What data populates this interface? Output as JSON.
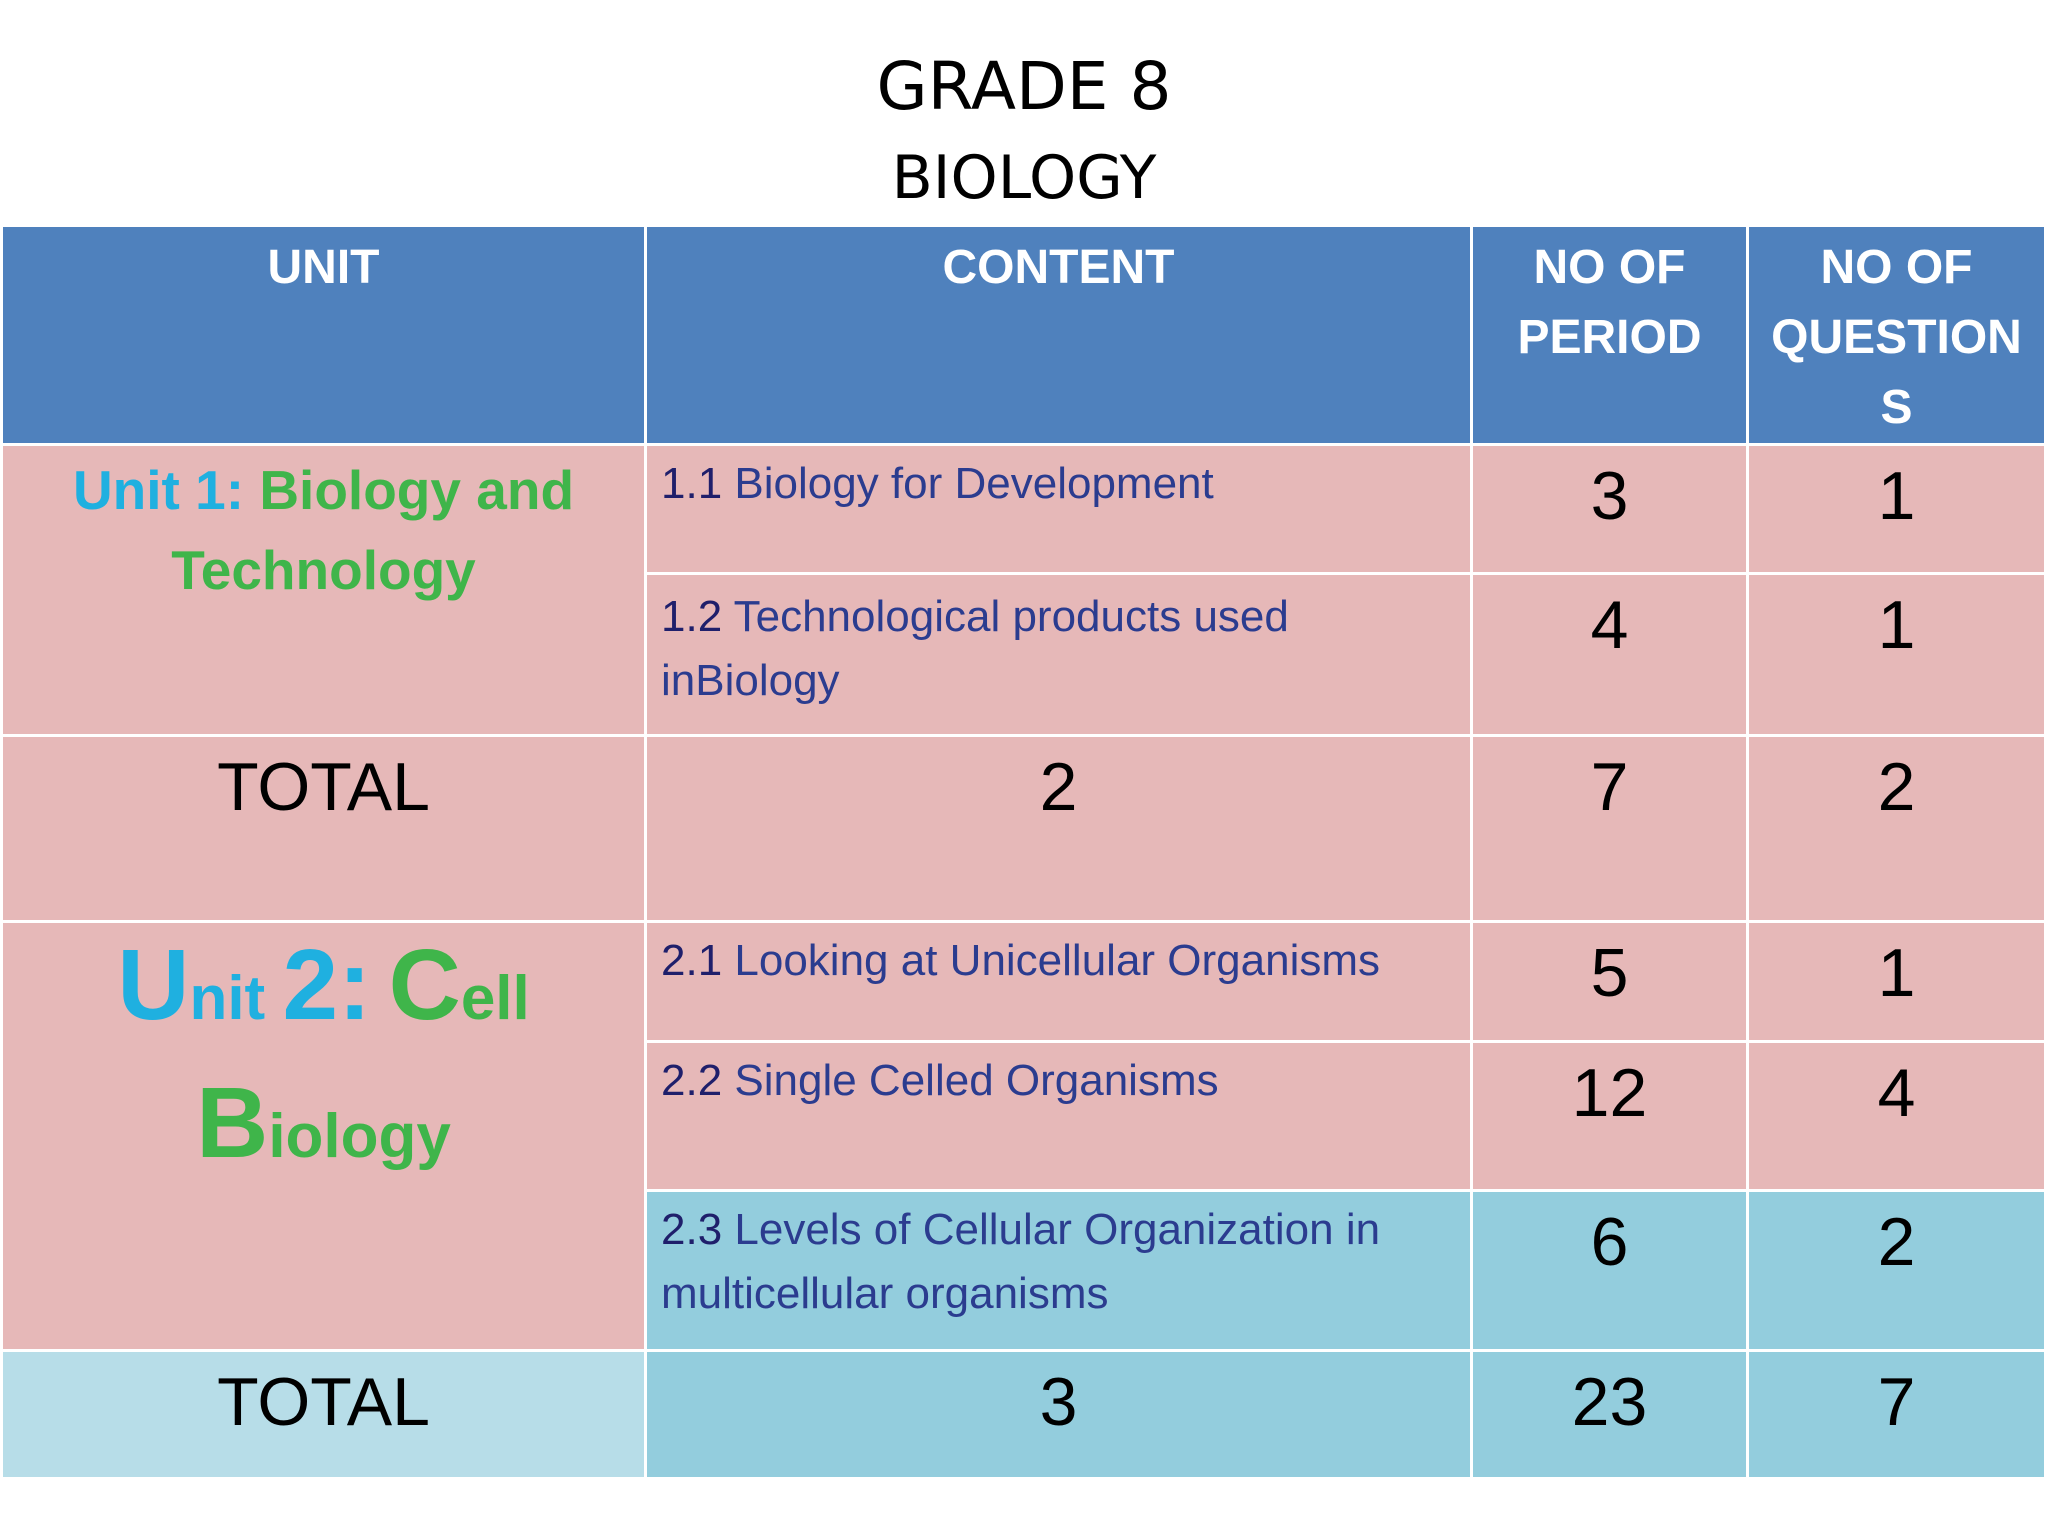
{
  "title": {
    "line1": "GRADE 8",
    "line2": "BIOLOGY"
  },
  "table": {
    "headers": {
      "unit": "UNIT",
      "content": "CONTENT",
      "periods_l1": "NO OF",
      "periods_l2": "PERIOD",
      "questions_l1": "NO OF",
      "questions_l2": "QUESTION",
      "questions_l3": "S"
    },
    "unit1": {
      "label_a": "Unit 1: ",
      "label_b": "Biology and",
      "label_c": "Technology",
      "rows": [
        {
          "num": "1.1 ",
          "text": "Biology for Development",
          "periods": "3",
          "questions": "1"
        },
        {
          "num": "1.2 ",
          "text": "Technological products used inBiology",
          "periods": "4",
          "questions": "1"
        }
      ],
      "total": {
        "label": "TOTAL",
        "content": "2",
        "periods": "7",
        "questions": "2"
      }
    },
    "unit2": {
      "u_big": "U",
      "u_rest": "nit ",
      "num_big": "2:",
      "c_big": "C",
      "c_rest": "ell",
      "b_big": "B",
      "b_rest": "iology",
      "rows": [
        {
          "num": "2.1 ",
          "text": "Looking at Unicellular Organisms",
          "periods": "5",
          "questions": "1"
        },
        {
          "num": "2.2 ",
          "text": "Single Celled Organisms",
          "periods": "12",
          "questions": "4"
        },
        {
          "num": "2.3 ",
          "text": "Levels of Cellular Organization in multicellular organisms",
          "periods": "6",
          "questions": "2"
        }
      ],
      "total": {
        "label": "TOTAL",
        "content": "3",
        "periods": "23",
        "questions": "7"
      }
    }
  },
  "colors": {
    "header": "#4f81bd",
    "pink_row": "#e6b8b8",
    "blue_row": "#93cddd",
    "light_blue_row": "#b7dde8",
    "unit_cyan": "#1fb0e0",
    "unit_green": "#3fb54a"
  }
}
